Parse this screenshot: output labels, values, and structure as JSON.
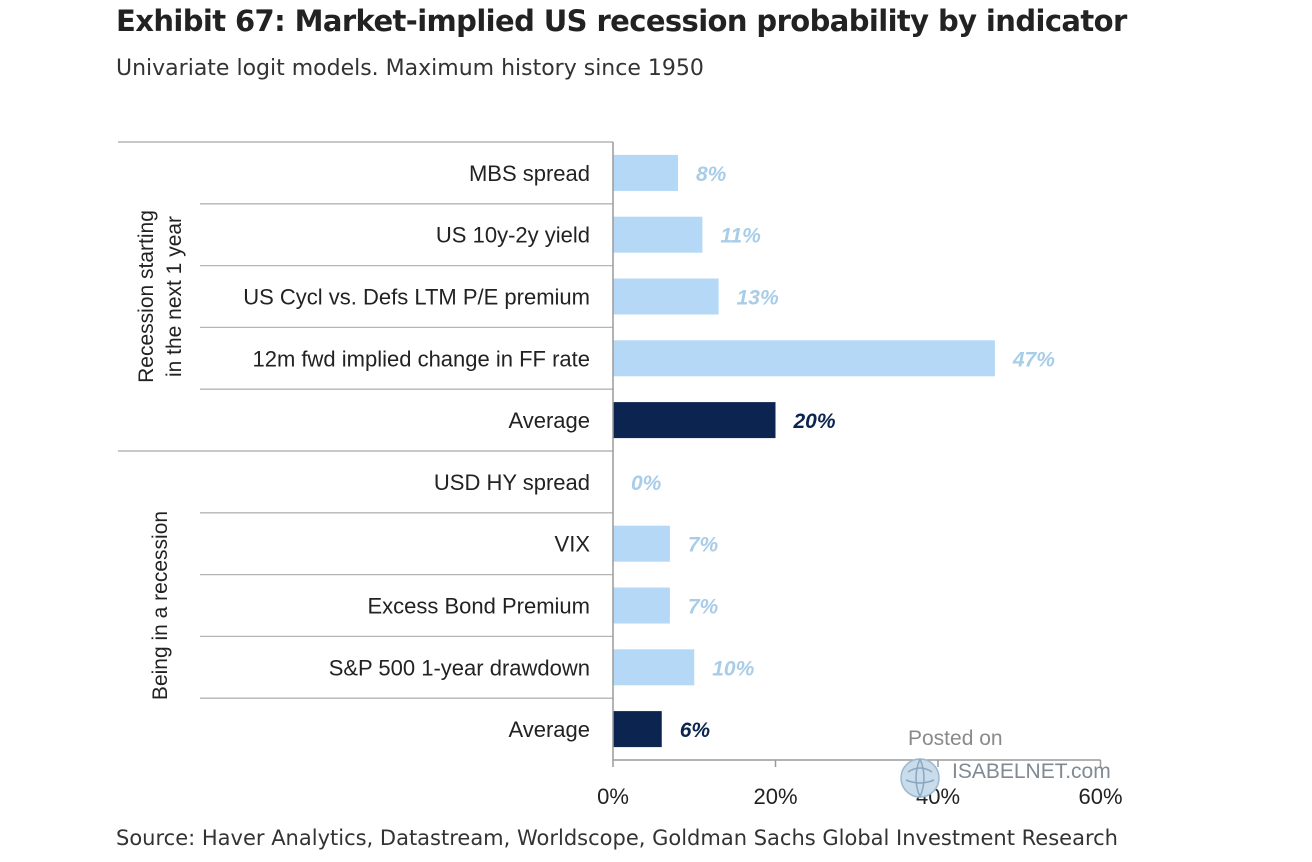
{
  "title": "Exhibit 67: Market-implied US recession probability by indicator",
  "subtitle": "Univariate logit models. Maximum history since 1950",
  "source": "Source: Haver Analytics, Datastream, Worldscope, Goldman Sachs Global Investment Research",
  "watermark": {
    "posted": "Posted on",
    "brand": "ISABELNET.com"
  },
  "colors": {
    "indicator_bar": "#b4d8f5",
    "average_bar": "#0c2550",
    "indicator_label": "#a8cde8",
    "average_label": "#0c2550"
  },
  "chart_data": {
    "type": "bar",
    "orientation": "horizontal",
    "xlim": [
      0,
      60
    ],
    "x_ticks": [
      "0%",
      "20%",
      "40%",
      "60%"
    ],
    "x_tick_values": [
      0,
      20,
      40,
      60
    ],
    "groups": [
      {
        "label": "Recession starting in the next 1 year",
        "label_lines": [
          "Recession starting",
          "in the next 1 year"
        ],
        "items": [
          {
            "category": "MBS spread",
            "value": 8,
            "label": "8%",
            "kind": "indicator"
          },
          {
            "category": "US 10y-2y yield",
            "value": 11,
            "label": "11%",
            "kind": "indicator"
          },
          {
            "category": "US Cycl vs. Defs LTM P/E premium",
            "value": 13,
            "label": "13%",
            "kind": "indicator"
          },
          {
            "category": "12m fwd implied change in FF rate",
            "value": 47,
            "label": "47%",
            "kind": "indicator"
          },
          {
            "category": "Average",
            "value": 20,
            "label": "20%",
            "kind": "average"
          }
        ]
      },
      {
        "label": "Being in a recession",
        "label_lines": [
          "Being in a recession"
        ],
        "items": [
          {
            "category": "USD HY spread",
            "value": 0,
            "label": "0%",
            "kind": "indicator"
          },
          {
            "category": "VIX",
            "value": 7,
            "label": "7%",
            "kind": "indicator"
          },
          {
            "category": "Excess Bond Premium",
            "value": 7,
            "label": "7%",
            "kind": "indicator"
          },
          {
            "category": "S&P 500 1-year drawdown",
            "value": 10,
            "label": "10%",
            "kind": "indicator"
          },
          {
            "category": "Average",
            "value": 6,
            "label": "6%",
            "kind": "average"
          }
        ]
      }
    ]
  }
}
